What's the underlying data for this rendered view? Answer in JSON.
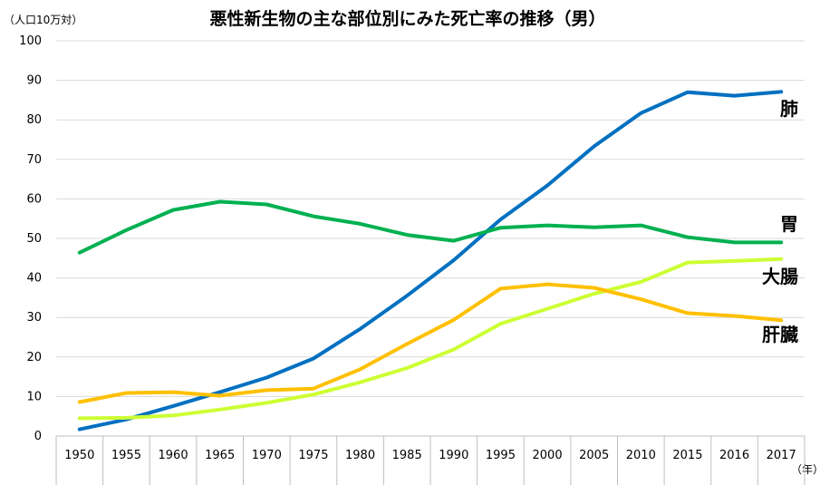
{
  "chart_data": {
    "type": "line",
    "title": "悪性新生物の主な部位別にみた死亡率の推移（男）",
    "ylabel": "（人口10万対）",
    "xlabel": "（年）",
    "ylim": [
      0,
      100
    ],
    "yticks": [
      0,
      10,
      20,
      30,
      40,
      50,
      60,
      70,
      80,
      90,
      100
    ],
    "categories": [
      "1950",
      "1955",
      "1960",
      "1965",
      "1970",
      "1975",
      "1980",
      "1985",
      "1990",
      "1995",
      "2000",
      "2005",
      "2010",
      "2015",
      "2016",
      "2017"
    ],
    "grid": true,
    "legend": "labels at line ends (right)",
    "series": [
      {
        "name": "肺",
        "color": "#0070C0",
        "values": [
          1.7,
          4.2,
          7.6,
          11.1,
          14.8,
          19.6,
          27.1,
          35.5,
          44.5,
          54.8,
          63.4,
          73.3,
          81.7,
          87.0,
          86.1,
          87.1
        ]
      },
      {
        "name": "胃",
        "color": "#00B050",
        "values": [
          46.4,
          52.1,
          57.2,
          59.3,
          58.6,
          55.6,
          53.7,
          50.9,
          49.4,
          52.7,
          53.3,
          52.8,
          53.3,
          50.3,
          49.0,
          49.0
        ]
      },
      {
        "name": "大腸",
        "color": "#CCFF33",
        "values": [
          4.5,
          4.6,
          5.2,
          6.7,
          8.4,
          10.5,
          13.6,
          17.2,
          21.9,
          28.4,
          32.2,
          36.0,
          39.0,
          43.9,
          44.3,
          44.8
        ]
      },
      {
        "name": "肝臓",
        "color": "#FFC000",
        "values": [
          8.6,
          10.9,
          11.1,
          10.2,
          11.6,
          12.0,
          16.9,
          23.3,
          29.4,
          37.3,
          38.4,
          37.5,
          34.6,
          31.1,
          30.4,
          29.3
        ]
      }
    ]
  }
}
